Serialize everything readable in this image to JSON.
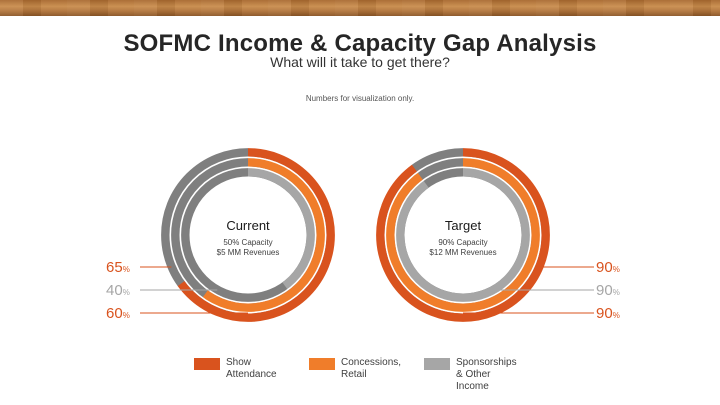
{
  "header": {
    "title": "SOFMC Income & Capacity Gap Analysis",
    "subtitle": "What will it take to get there?",
    "note": "Numbers for visualization only."
  },
  "chart_data": {
    "type": "donut",
    "title": "SOFMC Income & Capacity Gap Analysis",
    "rings_order": [
      "Show Attendance",
      "Concessions, Retail",
      "Sponsorships & Other Income"
    ],
    "series": [
      {
        "name": "Show Attendance",
        "color": "#d9531e"
      },
      {
        "name": "Concessions, Retail",
        "color": "#f07d2a"
      },
      {
        "name": "Sponsorships & Other Income",
        "color": "#a6a6a6"
      }
    ],
    "charts": [
      {
        "label": "Current",
        "detail_line1": "50% Capacity",
        "detail_line2": "$5 MM Revenues",
        "labels_side": "left",
        "values": [
          65,
          60,
          40
        ],
        "value_labels": [
          {
            "text": "65",
            "unit": "%",
            "color": "#d9531e",
            "ring": 0
          },
          {
            "text": "40",
            "unit": "%",
            "color": "#a6a6a6",
            "ring": 2
          },
          {
            "text": "60",
            "unit": "%",
            "color": "#d9531e",
            "ring": 1
          }
        ]
      },
      {
        "label": "Target",
        "detail_line1": "90% Capacity",
        "detail_line2": "$12 MM Revenues",
        "labels_side": "right",
        "values": [
          90,
          90,
          90
        ],
        "value_labels": [
          {
            "text": "90",
            "unit": "%",
            "color": "#d9531e",
            "ring": 0
          },
          {
            "text": "90",
            "unit": "%",
            "color": "#a6a6a6",
            "ring": 2
          },
          {
            "text": "90",
            "unit": "%",
            "color": "#d9531e",
            "ring": 1
          }
        ]
      }
    ],
    "remainder_color": "#7f7f7f"
  },
  "legend": [
    {
      "label_line1": "Show",
      "label_line2": "Attendance",
      "color": "#d9531e"
    },
    {
      "label_line1": "Concessions,",
      "label_line2": "Retail",
      "color": "#f07d2a"
    },
    {
      "label_line1": "Sponsorships",
      "label_line2": "& Other",
      "label_line3": "Income",
      "color": "#a6a6a6"
    }
  ]
}
